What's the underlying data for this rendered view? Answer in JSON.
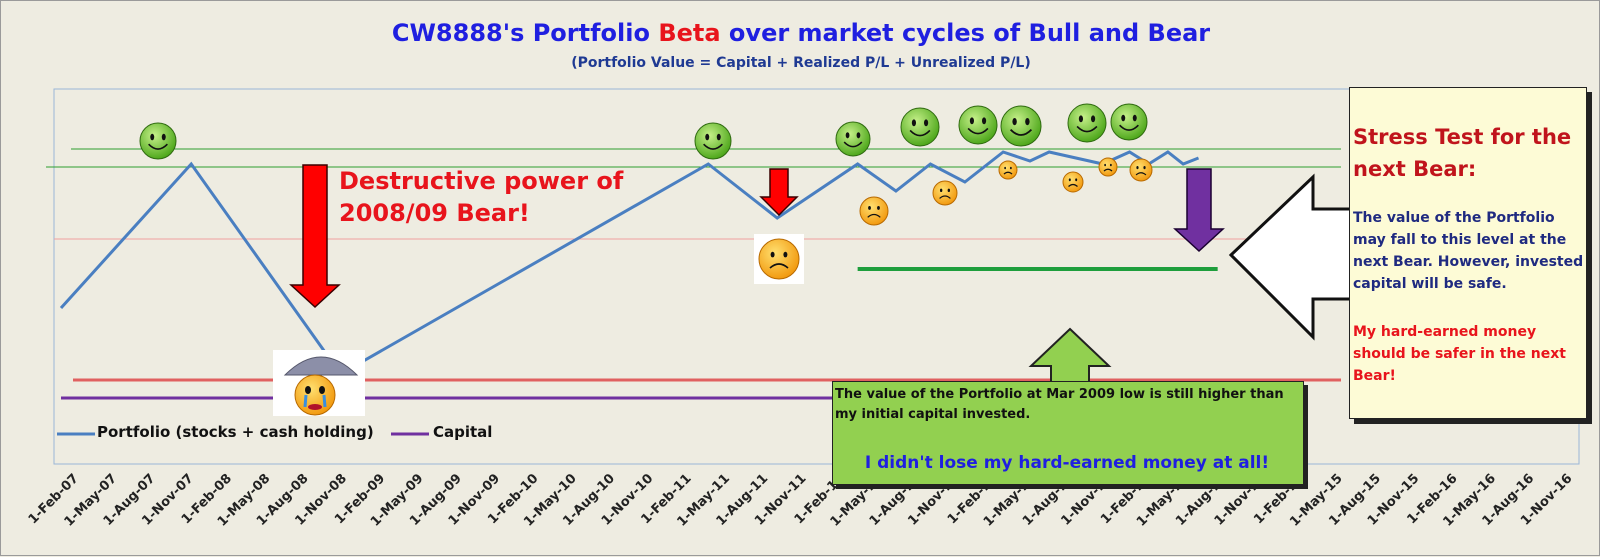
{
  "header": {
    "title_part1": "CW8888's Portfolio ",
    "title_beta": "Beta",
    "title_part2": " over market cycles of Bull and Bear",
    "subtitle": "(Portfolio Value = Capital + Realized P/L + Unrealized P/L)"
  },
  "callouts": {
    "destructive_line1": "Destructive power of",
    "destructive_line2": "2008/09  Bear!",
    "stress_title_line1": "Stress Test for the",
    "stress_title_line2": "next Bear:",
    "stress_body": "The value of the Portfolio may fall to this level at the next Bear. However, invested capital will be safe.",
    "stress_money": "My hard-earned money should be safer in the next Bear!",
    "green_text": "The value of the Portfolio at Mar 2009 low is still higher than my initial capital invested.",
    "green_strong": "I didn't lose my hard-earned money at all!"
  },
  "legend": {
    "portfolio": "Portfolio (stocks + cash holding)",
    "capital": "Capital"
  },
  "colors": {
    "portfolio": "#4a7fc1",
    "capital": "#7030a0",
    "red_arrow": "#ff0000",
    "purple_arrow": "#7030a0",
    "green_callout": "#92d050",
    "stress_box": "#fdfbd6"
  },
  "icons": {
    "happy": "smiley-happy-icon",
    "sad": "smiley-sad-icon",
    "crying": "crying-umbrella-icon"
  },
  "chart_data": {
    "type": "line",
    "x_ticks": [
      "1-Feb-07",
      "1-May-07",
      "1-Aug-07",
      "1-Nov-07",
      "1-Feb-08",
      "1-May-08",
      "1-Aug-08",
      "1-Nov-08",
      "1-Feb-09",
      "1-May-09",
      "1-Aug-09",
      "1-Nov-09",
      "1-Feb-10",
      "1-May-10",
      "1-Aug-10",
      "1-Nov-10",
      "1-Feb-11",
      "1-May-11",
      "1-Aug-11",
      "1-Nov-11",
      "1-Feb-12",
      "1-May-12",
      "1-Aug-12",
      "1-Nov-12",
      "1-Feb-13",
      "1-May-13",
      "1-Aug-13",
      "1-Nov-13",
      "1-Feb-14",
      "1-May-14",
      "1-Aug-14",
      "1-Nov-14",
      "1-Feb-15",
      "1-May-15",
      "1-Aug-15",
      "1-Nov-15",
      "1-Feb-16",
      "1-May-16",
      "1-Aug-16",
      "1-Nov-16"
    ],
    "series": [
      {
        "name": "Portfolio (stocks + cash holding)",
        "values": [
          [
            0.0,
            52
          ],
          [
            3.4,
            100
          ],
          [
            7.3,
            30
          ],
          [
            16.9,
            100
          ],
          [
            18.7,
            82
          ],
          [
            20.8,
            100
          ],
          [
            21.8,
            91
          ],
          [
            22.7,
            100
          ],
          [
            23.6,
            94
          ],
          [
            24.6,
            104
          ],
          [
            25.3,
            101
          ],
          [
            25.8,
            104
          ],
          [
            27.2,
            100
          ],
          [
            27.9,
            104
          ],
          [
            28.4,
            100
          ],
          [
            28.9,
            104
          ],
          [
            29.3,
            100
          ],
          [
            29.7,
            102
          ]
        ]
      },
      {
        "name": "Capital",
        "values": [
          [
            0.0,
            22
          ],
          [
            29.7,
            22
          ]
        ]
      }
    ],
    "reference_levels": {
      "upper_green_1": 105,
      "upper_green_2": 99,
      "pink": 75,
      "red": 28,
      "stress_test_green": 65
    },
    "stress_test_range": [
      20.8,
      30.2
    ],
    "ylim": [
      0,
      125
    ],
    "legend_position": "bottom-left",
    "grid": false
  }
}
